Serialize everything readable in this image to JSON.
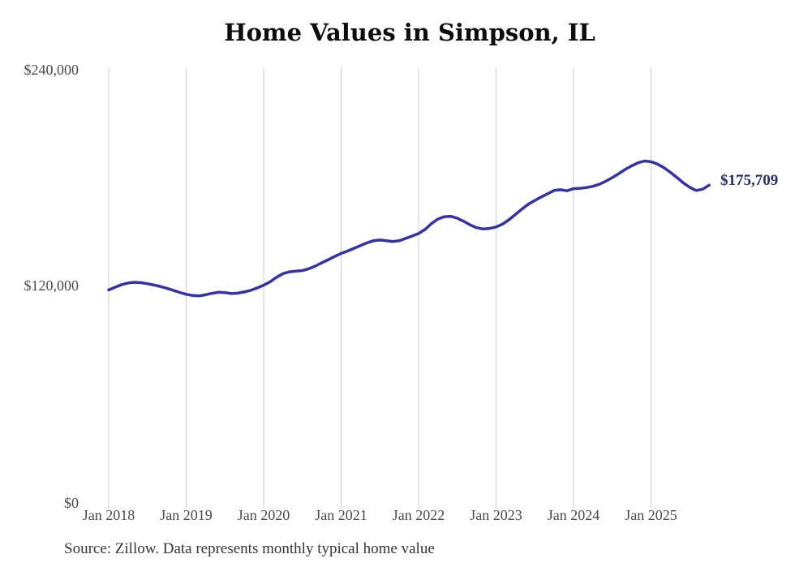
{
  "chart_data": {
    "type": "line",
    "title": "Home Values in Simpson, IL",
    "source": "Source: Zillow. Data represents monthly typical home value",
    "end_label": "$175,709",
    "current_value": 175709,
    "x_tick_labels": [
      "Jan 2018",
      "Jan 2019",
      "Jan 2020",
      "Jan 2021",
      "Jan 2022",
      "Jan 2023",
      "Jan 2024",
      "Jan 2025"
    ],
    "y_tick_labels": [
      "$240,000",
      "$120,000",
      "$0"
    ],
    "y_tick_values": [
      240000,
      120000,
      0
    ],
    "ylim": [
      0,
      240000
    ],
    "grid": "vertical-only",
    "legend": "none",
    "line_color": "#3533a3",
    "end_label_color": "#272d6d",
    "gridline_color": "#cccccc",
    "series": [
      {
        "name": "Typical home value",
        "start_month": "2018-01",
        "end_month": "2025-10",
        "frequency": "monthly",
        "values": [
          117800,
          119300,
          120700,
          121600,
          122000,
          121800,
          121200,
          120500,
          119700,
          118700,
          117600,
          116400,
          115400,
          114700,
          114500,
          115100,
          115900,
          116500,
          116300,
          115800,
          116000,
          116700,
          117600,
          118900,
          120400,
          122300,
          124800,
          126800,
          127800,
          128200,
          128500,
          129500,
          131000,
          132800,
          134500,
          136300,
          138000,
          139300,
          140800,
          142300,
          143800,
          145000,
          145400,
          145000,
          144600,
          145000,
          146300,
          147600,
          149000,
          151200,
          154500,
          157000,
          158300,
          158500,
          157400,
          155700,
          153700,
          152200,
          151500,
          151800,
          152600,
          154200,
          156600,
          159500,
          162500,
          165200,
          167300,
          169200,
          171000,
          172800,
          173200,
          172600,
          173800,
          174000,
          174400,
          175100,
          176200,
          177900,
          179900,
          182100,
          184400,
          186400,
          188100,
          189100,
          188700,
          187400,
          185400,
          182800,
          180000,
          177000,
          174500,
          172800,
          173500,
          175709
        ]
      }
    ]
  }
}
